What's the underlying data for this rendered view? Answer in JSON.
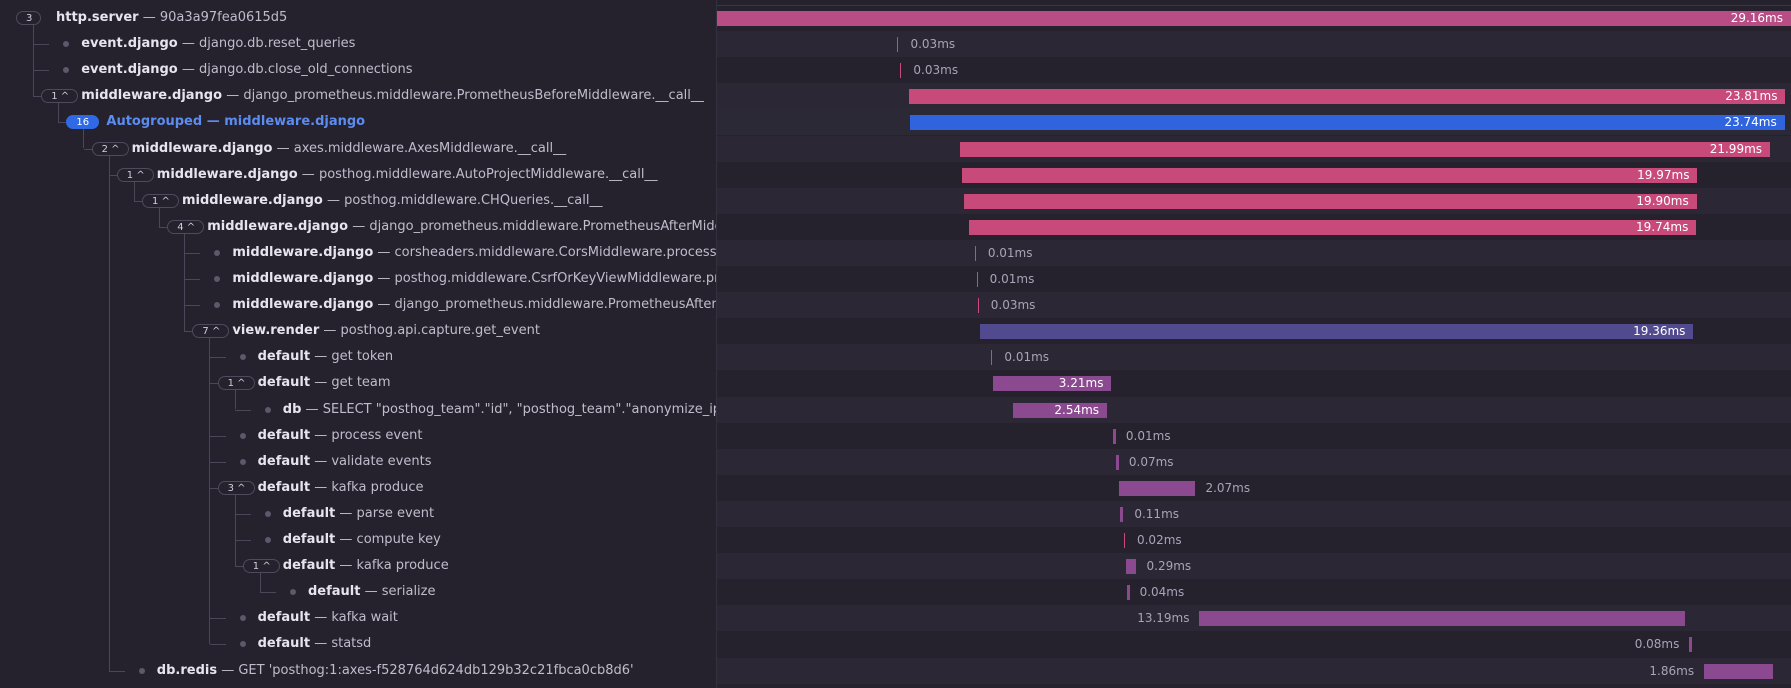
{
  "spans": [
    {
      "count": "3",
      "op": "http.server",
      "desc": "90a3a97fea0615d5",
      "duration": "29.16ms",
      "depth": 0,
      "chevron": false,
      "start_ms": 0,
      "dur_ms": 29.16,
      "color": "mag"
    },
    {
      "count": "",
      "op": "event.django",
      "desc": "django.db.reset_queries",
      "duration": "0.03ms",
      "depth": 1,
      "start_ms": 4.9,
      "dur_ms": 0.03,
      "color": "tick"
    },
    {
      "count": "",
      "op": "event.django",
      "desc": "django.db.close_old_connections",
      "duration": "0.03ms",
      "depth": 1,
      "start_ms": 4.98,
      "dur_ms": 0.03,
      "color": "tick"
    },
    {
      "count": "1",
      "op": "middleware.django",
      "desc": "django_prometheus.middleware.PrometheusBeforeMiddleware.__call__",
      "duration": "23.81ms",
      "depth": 1,
      "chevron": true,
      "start_ms": 5.2,
      "dur_ms": 23.81,
      "color": "pink"
    },
    {
      "count": "16",
      "op": "Autogrouped",
      "desc": "middleware.django",
      "duration": "23.74ms",
      "depth": 2,
      "badge_blue": true,
      "autogroup": true,
      "start_ms": 5.25,
      "dur_ms": 23.74,
      "color": "blue"
    },
    {
      "count": "2",
      "op": "middleware.django",
      "desc": "axes.middleware.AxesMiddleware.__call__",
      "duration": "21.99ms",
      "depth": 3,
      "chevron": true,
      "start_ms": 6.6,
      "dur_ms": 21.99,
      "color": "pink"
    },
    {
      "count": "1",
      "op": "middleware.django",
      "desc": "posthog.middleware.AutoProjectMiddleware.__call__",
      "duration": "19.97ms",
      "depth": 4,
      "chevron": true,
      "start_ms": 6.65,
      "dur_ms": 19.97,
      "color": "pink"
    },
    {
      "count": "1",
      "op": "middleware.django",
      "desc": "posthog.middleware.CHQueries.__call__",
      "duration": "19.90ms",
      "depth": 5,
      "chevron": true,
      "start_ms": 6.7,
      "dur_ms": 19.9,
      "color": "pink"
    },
    {
      "count": "4",
      "op": "middleware.django",
      "desc": "django_prometheus.middleware.PrometheusAfterMiddleware.__call__",
      "duration": "19.74ms",
      "depth": 6,
      "chevron": true,
      "start_ms": 6.85,
      "dur_ms": 19.74,
      "color": "pink"
    },
    {
      "count": "",
      "op": "middleware.django",
      "desc": "corsheaders.middleware.CorsMiddleware.process_view",
      "duration": "0.01ms",
      "depth": 7,
      "start_ms": 7.0,
      "dur_ms": 0.01,
      "color": "tick"
    },
    {
      "count": "",
      "op": "middleware.django",
      "desc": "posthog.middleware.CsrfOrKeyViewMiddleware.process_view",
      "duration": "0.01ms",
      "depth": 7,
      "start_ms": 7.05,
      "dur_ms": 0.01,
      "color": "tick"
    },
    {
      "count": "",
      "op": "middleware.django",
      "desc": "django_prometheus.middleware.PrometheusAfterMiddleware.process_view",
      "duration": "0.03ms",
      "depth": 7,
      "start_ms": 7.08,
      "dur_ms": 0.03,
      "color": "tick"
    },
    {
      "count": "7",
      "op": "view.render",
      "desc": "posthog.api.capture.get_event",
      "duration": "19.36ms",
      "depth": 7,
      "chevron": true,
      "start_ms": 7.15,
      "dur_ms": 19.36,
      "color": "indigo"
    },
    {
      "count": "",
      "op": "default",
      "desc": "get token",
      "duration": "0.01ms",
      "depth": 8,
      "start_ms": 7.45,
      "dur_ms": 0.01,
      "color": "tick"
    },
    {
      "count": "1",
      "op": "default",
      "desc": "get team",
      "duration": "3.21ms",
      "depth": 8,
      "chevron": true,
      "start_ms": 7.5,
      "dur_ms": 3.21,
      "color": "purple"
    },
    {
      "count": "",
      "op": "db",
      "desc": "SELECT \"posthog_team\".\"id\", \"posthog_team\".\"anonymize_ips\" FROM \"posthog_team\"",
      "duration": "2.54ms",
      "depth": 9,
      "start_ms": 8.05,
      "dur_ms": 2.54,
      "color": "purple"
    },
    {
      "count": "",
      "op": "default",
      "desc": "process event",
      "duration": "0.01ms",
      "depth": 8,
      "start_ms": 10.75,
      "dur_ms": 0.01,
      "color": "tickp"
    },
    {
      "count": "",
      "op": "default",
      "desc": "validate events",
      "duration": "0.07ms",
      "depth": 8,
      "start_ms": 10.83,
      "dur_ms": 0.07,
      "color": "tickp"
    },
    {
      "count": "3",
      "op": "default",
      "desc": "kafka produce",
      "duration": "2.07ms",
      "depth": 8,
      "chevron": true,
      "start_ms": 10.92,
      "dur_ms": 2.07,
      "color": "purple"
    },
    {
      "count": "",
      "op": "default",
      "desc": "parse event",
      "duration": "0.11ms",
      "depth": 9,
      "start_ms": 10.95,
      "dur_ms": 0.11,
      "color": "tickp"
    },
    {
      "count": "",
      "op": "default",
      "desc": "compute key",
      "duration": "0.02ms",
      "depth": 9,
      "start_ms": 11.05,
      "dur_ms": 0.02,
      "color": "tick"
    },
    {
      "count": "1",
      "op": "default",
      "desc": "kafka produce",
      "duration": "0.29ms",
      "depth": 9,
      "chevron": true,
      "start_ms": 11.1,
      "dur_ms": 0.29,
      "color": "purple"
    },
    {
      "count": "",
      "op": "default",
      "desc": "serialize",
      "duration": "0.04ms",
      "depth": 10,
      "start_ms": 11.12,
      "dur_ms": 0.04,
      "color": "tickp"
    },
    {
      "count": "",
      "op": "default",
      "desc": "kafka wait",
      "duration": "13.19ms",
      "depth": 8,
      "start_ms": 13.1,
      "dur_ms": 13.19,
      "color": "purple",
      "label_left": true
    },
    {
      "count": "",
      "op": "default",
      "desc": "statsd",
      "duration": "0.08ms",
      "depth": 8,
      "start_ms": 26.4,
      "dur_ms": 0.08,
      "color": "tickp",
      "label_left": true
    },
    {
      "count": "",
      "op": "db.redis",
      "desc": "GET 'posthog:1:axes-f528764d624db129b32c21fbca0cb8d6'",
      "duration": "1.86ms",
      "depth": 4,
      "start_ms": 26.8,
      "dur_ms": 1.86,
      "color": "purple",
      "label_left": true
    }
  ],
  "timeline": {
    "total_ms": 29.16
  },
  "colors": {
    "mag": "#b84c85",
    "pink": "#c84a7b",
    "blue": "#2f64de",
    "indigo": "#514a8e",
    "purple": "#8b4a90"
  }
}
